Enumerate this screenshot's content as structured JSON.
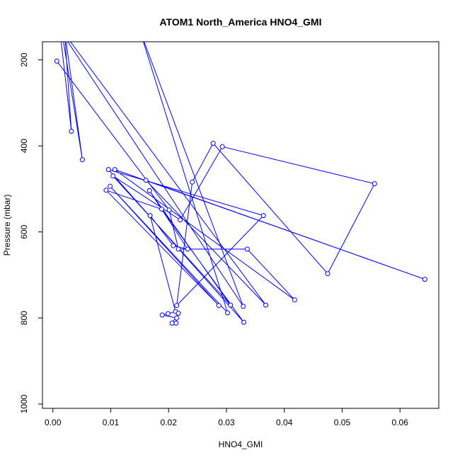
{
  "chart_data": {
    "type": "line",
    "title": "ATOM1 North_America HNO4_GMI",
    "xlabel": "HNO4_GMI",
    "ylabel": "Pressure (mbar)",
    "xlim": [
      -0.0018,
      0.0667
    ],
    "ylim": [
      1010,
      158
    ],
    "y_reversed": true,
    "x_ticks": [
      "0.00",
      "0.01",
      "0.02",
      "0.03",
      "0.04",
      "0.05",
      "0.06"
    ],
    "y_ticks": [
      "200",
      "400",
      "600",
      "800",
      "1000"
    ],
    "series": [
      {
        "color": "#0000ff",
        "marker": "open-circle",
        "points": [
          [
            0.0007,
            203
          ],
          [
            0.0201,
            549
          ],
          [
            0.0217,
            640
          ],
          [
            0.0336,
            640
          ],
          [
            0.0418,
            758
          ],
          [
            0.0107,
            455
          ],
          [
            0.0643,
            710
          ],
          [
            0.0161,
            480
          ],
          [
            0.0368,
            770
          ],
          [
            0.0015,
            130
          ],
          [
            0.0051,
            432
          ],
          [
            0.002,
            130
          ],
          [
            0.0032,
            366
          ],
          [
            0.0012,
            130
          ],
          [
            0.0329,
            773
          ],
          [
            0.015,
            130
          ],
          [
            0.0302,
            788
          ],
          [
            0.0099,
            494
          ],
          [
            0.0287,
            771
          ],
          [
            0.0092,
            503
          ],
          [
            0.0188,
            547
          ],
          [
            0.033,
            810
          ],
          [
            0.0096,
            455
          ],
          [
            0.0364,
            562
          ],
          [
            0.0214,
            771
          ],
          [
            0.0241,
            484
          ],
          [
            0.0277,
            394
          ],
          [
            0.0475,
            697
          ],
          [
            0.0556,
            488
          ],
          [
            0.0293,
            402
          ],
          [
            0.022,
            572
          ],
          [
            0.0104,
            470
          ],
          [
            0.0307,
            770
          ],
          [
            0.0167,
            504
          ],
          [
            0.0233,
            640
          ],
          [
            0.0208,
            632
          ],
          [
            0.0168,
            562
          ],
          [
            0.0212,
            785
          ],
          [
            0.0199,
            790
          ],
          [
            0.0189,
            793
          ],
          [
            0.0214,
            800
          ],
          [
            0.0213,
            812
          ],
          [
            0.0206,
            812
          ],
          [
            0.0217,
            789
          ]
        ]
      }
    ]
  }
}
